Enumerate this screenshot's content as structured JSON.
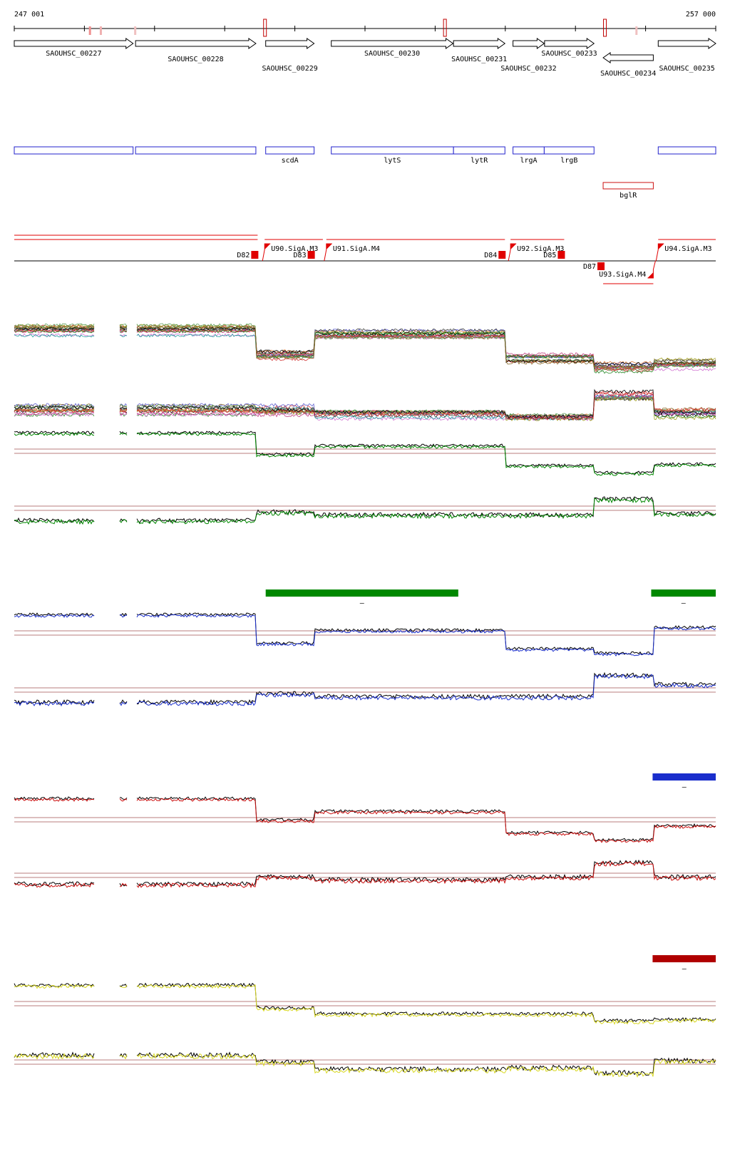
{
  "coord": {
    "start_label": "247 001",
    "end_label": "257 000",
    "start": 247001,
    "end": 257000
  },
  "genes": [
    {
      "name": "SAOUHSC_00227",
      "start": 247001,
      "end": 248695,
      "strand": "+"
    },
    {
      "name": "SAOUHSC_00228",
      "start": 248730,
      "end": 250445,
      "strand": "+"
    },
    {
      "name": "SAOUHSC_00229",
      "start": 250585,
      "end": 251275,
      "strand": "+"
    },
    {
      "name": "SAOUHSC_00230",
      "start": 251520,
      "end": 253255,
      "strand": "+"
    },
    {
      "name": "SAOUHSC_00231",
      "start": 253262,
      "end": 253995,
      "strand": "+"
    },
    {
      "name": "SAOUHSC_00232",
      "start": 254110,
      "end": 254555,
      "strand": "+"
    },
    {
      "name": "SAOUHSC_00233",
      "start": 254560,
      "end": 255265,
      "strand": "+"
    },
    {
      "name": "SAOUHSC_00234",
      "start": 255395,
      "end": 256110,
      "strand": "-"
    },
    {
      "name": "SAOUHSC_00235",
      "start": 256180,
      "end": 257000,
      "strand": "+"
    }
  ],
  "operon_genes": [
    {
      "name": "",
      "start": 247001,
      "end": 248695
    },
    {
      "name": "",
      "start": 248730,
      "end": 250445
    },
    {
      "name": "scdA",
      "start": 250585,
      "end": 251275
    },
    {
      "name": "lytS",
      "start": 251520,
      "end": 253262
    },
    {
      "name": "lytR",
      "start": 253262,
      "end": 253995
    },
    {
      "name": "lrgA",
      "start": 254110,
      "end": 254555
    },
    {
      "name": "lrgB",
      "start": 254555,
      "end": 255265
    },
    {
      "name": "",
      "start": 256180,
      "end": 257000
    }
  ],
  "red_genes": [
    {
      "name": "bglR",
      "start": 255395,
      "end": 256110
    }
  ],
  "promoters": [
    {
      "name": "U90.SigA.M3",
      "pos": 250570,
      "strand": "+"
    },
    {
      "name": "U91.SigA.M4",
      "pos": 251450,
      "strand": "+"
    },
    {
      "name": "U92.SigA.M3",
      "pos": 254075,
      "strand": "+"
    },
    {
      "name": "U93.SigA.M4",
      "pos": 256110,
      "strand": "-"
    },
    {
      "name": "U94.SigA.M3",
      "pos": 256180,
      "strand": "+"
    }
  ],
  "terminators": [
    {
      "name": "D82",
      "pos": 250470
    },
    {
      "name": "D83",
      "pos": 251275
    },
    {
      "name": "D84",
      "pos": 253995
    },
    {
      "name": "D85",
      "pos": 254840
    },
    {
      "name": "D87",
      "pos": 255405
    }
  ],
  "colors": {
    "green": "#008800",
    "blue": "#1a2ecc",
    "red": "#cc1010",
    "yellow": "#d8d820",
    "dark_red": "#b00000",
    "gene_blue": "#2222cc",
    "ref_line": "#a05050"
  },
  "markers": [
    {
      "track": "green",
      "start": 250585,
      "end": 253330,
      "label": "–"
    },
    {
      "track": "green",
      "start": 256080,
      "end": 257000,
      "label": "–"
    },
    {
      "track": "blue",
      "start": 256100,
      "end": 257000,
      "label": "–"
    },
    {
      "track": "dark_red",
      "start": 256100,
      "end": 257000,
      "label": "–"
    }
  ]
}
